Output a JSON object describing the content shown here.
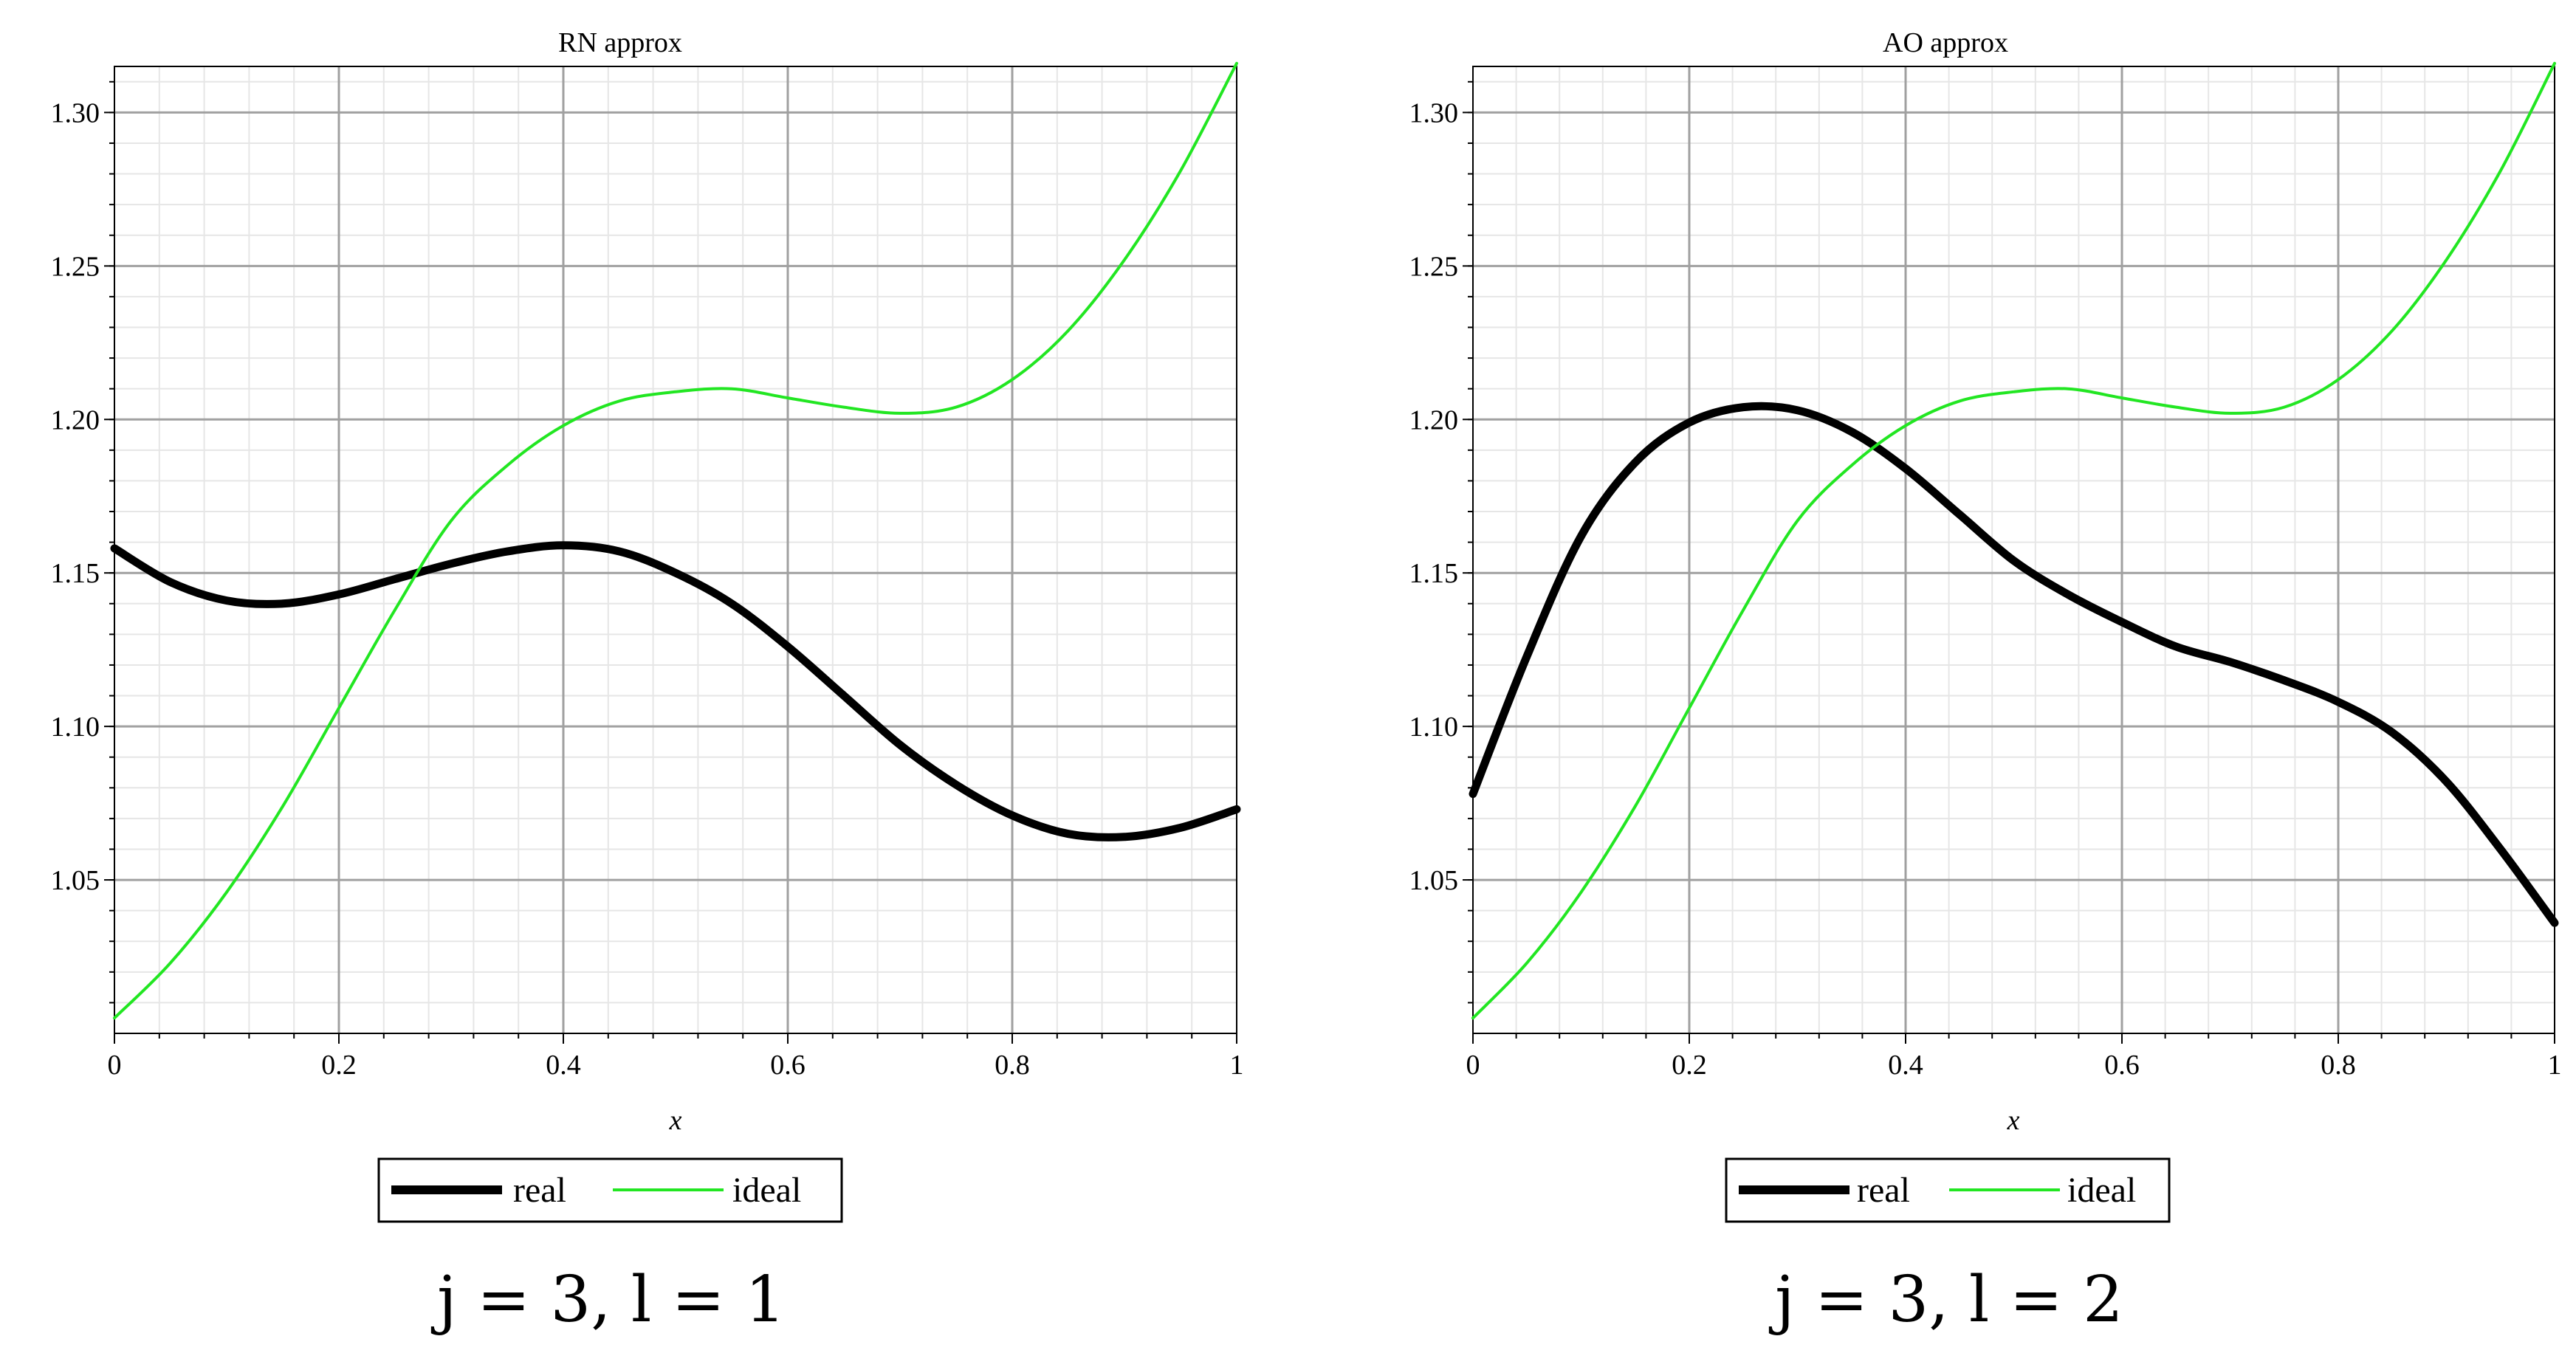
{
  "chart_data": [
    {
      "type": "line",
      "title": "RN  approx",
      "xlabel": "x",
      "ylabel": "",
      "xlim": [
        0,
        1
      ],
      "ylim": [
        1.0,
        1.315
      ],
      "xticks": [
        0,
        0.2,
        0.4,
        0.6,
        0.8,
        1
      ],
      "xtick_labels": [
        "0",
        "0.2",
        "0.4",
        "0.6",
        "0.8",
        "1"
      ],
      "yticks": [
        1.05,
        1.1,
        1.15,
        1.2,
        1.25,
        1.3
      ],
      "ytick_labels": [
        "1.05",
        "1.10",
        "1.15",
        "1.20",
        "1.25",
        "1.30"
      ],
      "grid": true,
      "legend_position": "bottom-center",
      "caption": "j = 3, l = 1",
      "series": [
        {
          "name": "real",
          "color": "#000000",
          "x": [
            0,
            0.05,
            0.1,
            0.15,
            0.2,
            0.25,
            0.3,
            0.35,
            0.4,
            0.45,
            0.5,
            0.55,
            0.6,
            0.65,
            0.7,
            0.75,
            0.8,
            0.85,
            0.9,
            0.95,
            1.0
          ],
          "y": [
            1.158,
            1.147,
            1.141,
            1.14,
            1.143,
            1.148,
            1.153,
            1.157,
            1.159,
            1.157,
            1.15,
            1.14,
            1.126,
            1.11,
            1.094,
            1.081,
            1.071,
            1.065,
            1.064,
            1.067,
            1.073
          ]
        },
        {
          "name": "ideal",
          "color": "#22e622",
          "x": [
            0,
            0.05,
            0.1,
            0.15,
            0.2,
            0.25,
            0.3,
            0.35,
            0.4,
            0.45,
            0.5,
            0.55,
            0.6,
            0.65,
            0.7,
            0.75,
            0.8,
            0.85,
            0.9,
            0.95,
            1.0
          ],
          "y": [
            1.005,
            1.023,
            1.046,
            1.074,
            1.106,
            1.138,
            1.167,
            1.185,
            1.198,
            1.206,
            1.209,
            1.21,
            1.207,
            1.204,
            1.202,
            1.204,
            1.213,
            1.229,
            1.252,
            1.281,
            1.316
          ]
        }
      ]
    },
    {
      "type": "line",
      "title": "AO  approx",
      "xlabel": "x",
      "ylabel": "",
      "xlim": [
        0,
        1
      ],
      "ylim": [
        1.0,
        1.315
      ],
      "xticks": [
        0,
        0.2,
        0.4,
        0.6,
        0.8,
        1
      ],
      "xtick_labels": [
        "0",
        "0.2",
        "0.4",
        "0.6",
        "0.8",
        "1"
      ],
      "yticks": [
        1.05,
        1.1,
        1.15,
        1.2,
        1.25,
        1.3
      ],
      "ytick_labels": [
        "1.05",
        "1.10",
        "1.15",
        "1.20",
        "1.25",
        "1.30"
      ],
      "grid": true,
      "legend_position": "bottom-center",
      "caption": "j = 3, l = 2",
      "series": [
        {
          "name": "real",
          "color": "#000000",
          "x": [
            0,
            0.05,
            0.1,
            0.15,
            0.2,
            0.25,
            0.3,
            0.35,
            0.4,
            0.45,
            0.5,
            0.55,
            0.6,
            0.65,
            0.7,
            0.75,
            0.8,
            0.85,
            0.9,
            0.95,
            1.0
          ],
          "y": [
            1.078,
            1.123,
            1.162,
            1.186,
            1.199,
            1.204,
            1.203,
            1.196,
            1.184,
            1.169,
            1.154,
            1.143,
            1.134,
            1.126,
            1.121,
            1.115,
            1.108,
            1.098,
            1.082,
            1.06,
            1.036
          ]
        },
        {
          "name": "ideal",
          "color": "#22e622",
          "x": [
            0,
            0.05,
            0.1,
            0.15,
            0.2,
            0.25,
            0.3,
            0.35,
            0.4,
            0.45,
            0.5,
            0.55,
            0.6,
            0.65,
            0.7,
            0.75,
            0.8,
            0.85,
            0.9,
            0.95,
            1.0
          ],
          "y": [
            1.005,
            1.023,
            1.046,
            1.074,
            1.106,
            1.138,
            1.167,
            1.185,
            1.198,
            1.206,
            1.209,
            1.21,
            1.207,
            1.204,
            1.202,
            1.204,
            1.213,
            1.229,
            1.252,
            1.281,
            1.316
          ]
        }
      ]
    }
  ]
}
